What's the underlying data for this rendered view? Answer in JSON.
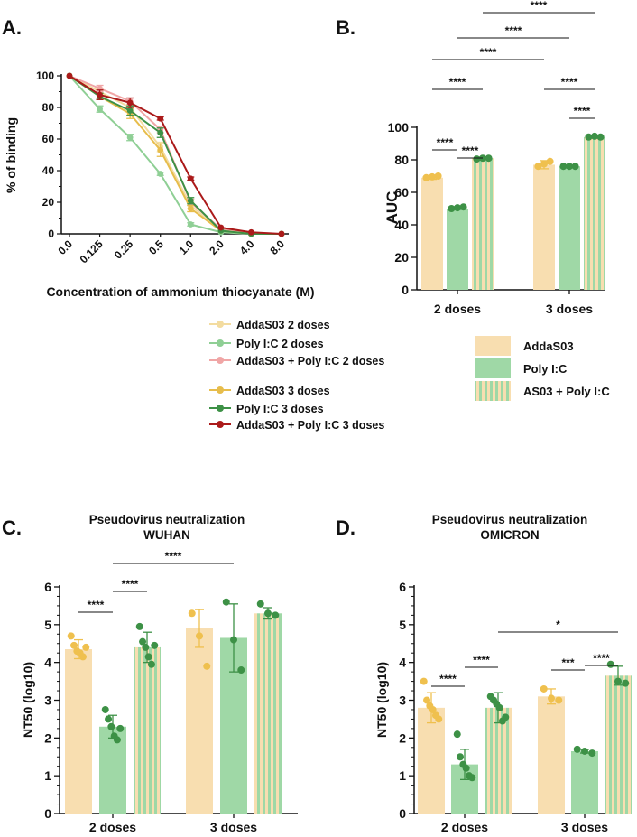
{
  "chart_data": [
    {
      "id": "A",
      "panel_label": "A.",
      "type": "line",
      "xlabel": "Concentration of ammonium thiocyanate (M)",
      "ylabel": "% of binding",
      "ylim": [
        0,
        100
      ],
      "yticks": [
        "0",
        "20",
        "40",
        "60",
        "80",
        "100"
      ],
      "categories": [
        "0.0",
        "0.125",
        "0.25",
        "0.5",
        "1.0",
        "2.0",
        "4.0",
        "8.0"
      ],
      "series": [
        {
          "name": "AddaS03 2 doses",
          "color": "#f3dca0",
          "values": [
            100,
            90,
            80,
            55,
            18,
            2,
            0,
            0
          ],
          "err": [
            0,
            2,
            2,
            3,
            2,
            0.5,
            0,
            0
          ]
        },
        {
          "name": "Poly I:C 2 doses",
          "color": "#8fcf95",
          "values": [
            100,
            79,
            61,
            38,
            6,
            1,
            0,
            0
          ],
          "err": [
            0,
            2,
            2,
            1,
            1,
            0.5,
            0,
            0
          ]
        },
        {
          "name": "AddaS03 + Poly I:C 2 doses",
          "color": "#f0a6a6",
          "values": [
            100,
            92,
            84,
            66,
            20,
            3,
            0,
            0
          ],
          "err": [
            0,
            2,
            2,
            2,
            2,
            0.5,
            0,
            0
          ]
        },
        {
          "name": "AddaS03 3 doses",
          "color": "#e7bd4c",
          "values": [
            100,
            87,
            76,
            53,
            16,
            2,
            0,
            0
          ],
          "err": [
            0,
            2,
            3,
            4,
            2,
            0.5,
            0,
            0
          ]
        },
        {
          "name": "Poly I:C 3 doses",
          "color": "#3d9146",
          "values": [
            100,
            87,
            78,
            64,
            21,
            2,
            0,
            0
          ],
          "err": [
            0,
            2,
            3,
            3,
            2,
            0.5,
            0,
            0
          ]
        },
        {
          "name": "AddaS03 + Poly I:C 3 doses",
          "color": "#ab1a1a",
          "values": [
            100,
            88,
            83,
            73,
            35,
            4,
            1,
            0
          ],
          "err": [
            0,
            3,
            3,
            1,
            1,
            0.5,
            0,
            0
          ]
        }
      ]
    },
    {
      "id": "B",
      "panel_label": "B.",
      "type": "bar",
      "ylabel": "AUC",
      "ylim": [
        0,
        100
      ],
      "yticks": [
        "0",
        "20",
        "40",
        "60",
        "80",
        "100"
      ],
      "categories": [
        "2 doses",
        "3 doses"
      ],
      "series": [
        {
          "name": "AddaS03",
          "values": [
            69,
            77
          ]
        },
        {
          "name": "Poly I:C",
          "values": [
            50,
            76
          ]
        },
        {
          "name": "AS03 + Poly I:C",
          "values": [
            81,
            94
          ]
        }
      ],
      "points": [
        [
          [
            69,
            69.5,
            70
          ],
          [
            50,
            50.5,
            51
          ],
          [
            80.5,
            81,
            81
          ]
        ],
        [
          [
            76,
            77.5,
            79
          ],
          [
            76,
            76,
            76
          ],
          [
            94,
            94.5,
            94
          ]
        ]
      ],
      "errors": [
        [
          1,
          0.5,
          0.5
        ],
        [
          2.5,
          0.5,
          0.5
        ]
      ],
      "significance": [
        {
          "label": "****",
          "from": [
            0,
            0
          ],
          "to": [
            0,
            1
          ]
        },
        {
          "label": "****",
          "from": [
            0,
            1
          ],
          "to": [
            0,
            2
          ]
        },
        {
          "label": "****",
          "from": [
            0,
            0
          ],
          "to": [
            0,
            2
          ]
        },
        {
          "label": "****",
          "from": [
            1,
            1
          ],
          "to": [
            1,
            2
          ]
        },
        {
          "label": "****",
          "from": [
            1,
            0
          ],
          "to": [
            1,
            2
          ]
        },
        {
          "label": "****",
          "from": [
            0,
            0
          ],
          "to": [
            1,
            0
          ]
        },
        {
          "label": "****",
          "from": [
            0,
            1
          ],
          "to": [
            1,
            1
          ]
        },
        {
          "label": "****",
          "from": [
            0,
            2
          ],
          "to": [
            1,
            2
          ]
        }
      ],
      "legend": [
        "AddaS03",
        "Poly I:C",
        "AS03 + Poly I:C"
      ]
    },
    {
      "id": "C",
      "panel_label": "C.",
      "type": "bar",
      "title": [
        "Pseudovirus neutralization",
        "WUHAN"
      ],
      "ylabel": "NT50 (log10)",
      "ylim": [
        0,
        6
      ],
      "yticks": [
        "0",
        "1",
        "2",
        "3",
        "4",
        "5",
        "6"
      ],
      "categories": [
        "2 doses",
        "3 doses"
      ],
      "series": [
        {
          "name": "AddaS03",
          "values": [
            4.35,
            4.9
          ]
        },
        {
          "name": "Poly I:C",
          "values": [
            2.3,
            4.65
          ]
        },
        {
          "name": "AS03 + Poly I:C",
          "values": [
            4.4,
            5.3
          ]
        }
      ],
      "points": [
        [
          [
            4.7,
            4.45,
            4.3,
            4.25,
            4.15,
            4.4
          ],
          [
            2.75,
            2.5,
            2.3,
            2.05,
            1.95,
            2.25
          ],
          [
            4.95,
            4.55,
            4.4,
            4.15,
            3.95,
            4.45
          ]
        ],
        [
          [
            5.3,
            4.7,
            3.9
          ],
          [
            5.6,
            4.6,
            3.8
          ],
          [
            5.55,
            5.3,
            5.25
          ]
        ]
      ],
      "errors": [
        [
          0.25,
          0.3,
          0.4
        ],
        [
          0.5,
          0.9,
          0.15
        ]
      ],
      "significance": [
        {
          "label": "****",
          "from": [
            0,
            0
          ],
          "to": [
            0,
            1
          ]
        },
        {
          "label": "****",
          "from": [
            0,
            1
          ],
          "to": [
            0,
            2
          ]
        },
        {
          "label": "****",
          "from": [
            0,
            1
          ],
          "to": [
            1,
            1
          ]
        }
      ]
    },
    {
      "id": "D",
      "panel_label": "D.",
      "type": "bar",
      "title": [
        "Pseudovirus neutralization",
        "OMICRON"
      ],
      "ylabel": "NT50 (log10)",
      "ylim": [
        0,
        6
      ],
      "yticks": [
        "0",
        "1",
        "2",
        "3",
        "4",
        "5",
        "6"
      ],
      "categories": [
        "2 doses",
        "3 doses"
      ],
      "series": [
        {
          "name": "AddaS03",
          "values": [
            2.8,
            3.1
          ]
        },
        {
          "name": "Poly I:C",
          "values": [
            1.3,
            1.65
          ]
        },
        {
          "name": "AS03 + Poly I:C",
          "values": [
            2.8,
            3.65
          ]
        }
      ],
      "points": [
        [
          [
            3.5,
            3.0,
            2.85,
            2.75,
            2.6,
            2.5
          ],
          [
            2.1,
            1.5,
            1.3,
            1.2,
            1.0,
            0.95
          ],
          [
            3.1,
            3.0,
            2.9,
            2.8,
            2.45,
            2.55
          ]
        ],
        [
          [
            3.3,
            3.05,
            3.0
          ],
          [
            1.7,
            1.65,
            1.6
          ],
          [
            3.95,
            3.5,
            3.45
          ]
        ]
      ],
      "errors": [
        [
          0.4,
          0.4,
          0.4
        ],
        [
          0.2,
          0.05,
          0.25
        ]
      ],
      "significance": [
        {
          "label": "****",
          "from": [
            0,
            0
          ],
          "to": [
            0,
            1
          ]
        },
        {
          "label": "****",
          "from": [
            0,
            1
          ],
          "to": [
            0,
            2
          ]
        },
        {
          "label": "***",
          "from": [
            1,
            0
          ],
          "to": [
            1,
            1
          ]
        },
        {
          "label": "****",
          "from": [
            1,
            1
          ],
          "to": [
            1,
            2
          ]
        },
        {
          "label": "*",
          "from": [
            0,
            2
          ],
          "to": [
            1,
            2
          ]
        }
      ]
    }
  ],
  "colors": {
    "addas03_bar": "#f8deb0",
    "addas03_dot": "#efc04e",
    "polyic_bar": "#9fd8a6",
    "polyic_dot": "#3d9146",
    "combo_stripe_a": "#9fd8a6",
    "combo_stripe_b": "#f8deb0",
    "combo_dot": "#3d9146"
  }
}
